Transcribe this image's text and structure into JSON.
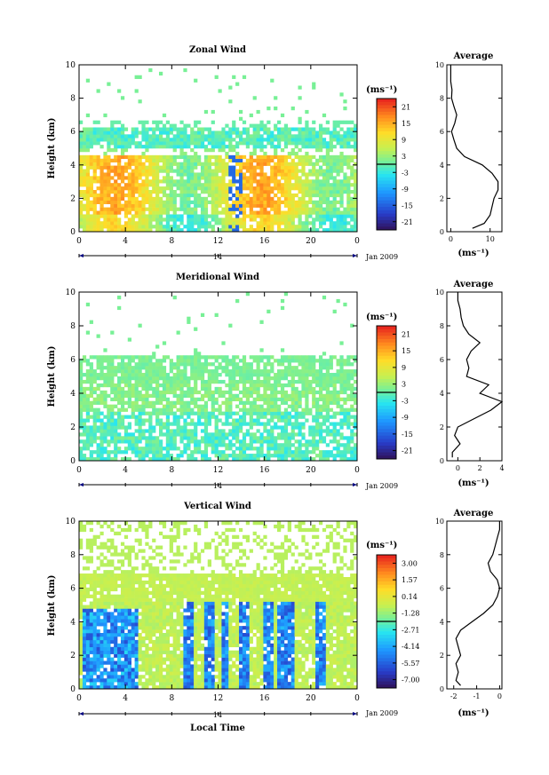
{
  "chart_data": [
    {
      "type": "heatmap",
      "title": "Zonal Wind",
      "xlabel": "",
      "ylabel": "Height (km)",
      "x_ticks": [
        "0",
        "4",
        "8",
        "12",
        "16",
        "20",
        "0"
      ],
      "y_ticks": [
        "0",
        "2",
        "4",
        "6",
        "8",
        "10"
      ],
      "xlim": [
        0,
        24
      ],
      "ylim": [
        0,
        10
      ],
      "date_center": "14",
      "date_label": "Jan 2009",
      "colorbar": {
        "unit": "(ms⁻¹)",
        "ticks": [
          "21",
          "15",
          "9",
          "3",
          "-3",
          "-9",
          "-15",
          "-21"
        ],
        "range": [
          -24,
          24
        ]
      },
      "profile": {
        "title": "Average",
        "xlabel": "(ms⁻¹)",
        "x_ticks": [
          "0",
          "10"
        ],
        "xlim": [
          -1,
          13
        ],
        "y_ticks": [
          "0",
          "2",
          "4",
          "6",
          "8",
          "10"
        ],
        "height": [
          0.2,
          0.5,
          1.0,
          1.5,
          2.0,
          2.5,
          3.0,
          3.5,
          4.0,
          4.5,
          5.0,
          5.5,
          6.0,
          6.5,
          7.0,
          7.5,
          8.0,
          8.5,
          9.0,
          9.5,
          10.0
        ],
        "value": [
          5.5,
          8.5,
          10.0,
          10.5,
          11.0,
          12.0,
          12.0,
          10.5,
          8.0,
          3.5,
          1.5,
          0.8,
          0.2,
          1.0,
          1.5,
          0.8,
          0.2,
          0.3,
          0.0,
          0.0,
          0.0
        ]
      }
    },
    {
      "type": "heatmap",
      "title": "Meridional Wind",
      "xlabel": "",
      "ylabel": "Height (km)",
      "x_ticks": [
        "0",
        "4",
        "8",
        "12",
        "16",
        "20",
        "0"
      ],
      "y_ticks": [
        "0",
        "2",
        "4",
        "6",
        "8",
        "10"
      ],
      "xlim": [
        0,
        24
      ],
      "ylim": [
        0,
        10
      ],
      "date_center": "14",
      "date_label": "Jan 2009",
      "colorbar": {
        "unit": "(ms⁻¹)",
        "ticks": [
          "21",
          "15",
          "9",
          "3",
          "-3",
          "-9",
          "-15",
          "-21"
        ],
        "range": [
          -24,
          24
        ]
      },
      "profile": {
        "title": "Average",
        "xlabel": "(ms⁻¹)",
        "x_ticks": [
          "0",
          "2",
          "4"
        ],
        "xlim": [
          -1,
          4
        ],
        "y_ticks": [
          "0",
          "2",
          "4",
          "6",
          "8",
          "10"
        ],
        "height": [
          0.2,
          0.5,
          1.0,
          1.5,
          2.0,
          2.5,
          3.0,
          3.5,
          4.0,
          4.5,
          5.0,
          5.5,
          6.0,
          6.5,
          7.0,
          7.5,
          8.0,
          8.5,
          9.0,
          9.5,
          10.0
        ],
        "value": [
          -0.5,
          -0.5,
          0.2,
          -0.3,
          0.0,
          1.5,
          3.0,
          4.0,
          2.0,
          2.8,
          0.8,
          1.0,
          0.8,
          1.2,
          2.0,
          1.0,
          0.5,
          0.3,
          0.2,
          0.0,
          0.0
        ]
      }
    },
    {
      "type": "heatmap",
      "title": "Vertical Wind",
      "xlabel": "Local Time",
      "ylabel": "Height (km)",
      "x_ticks": [
        "0",
        "4",
        "8",
        "12",
        "16",
        "20",
        "0"
      ],
      "y_ticks": [
        "0",
        "2",
        "4",
        "6",
        "8",
        "10"
      ],
      "xlim": [
        0,
        24
      ],
      "ylim": [
        0,
        10
      ],
      "date_center": "14",
      "date_label": "Jan 2009",
      "colorbar": {
        "unit": "(ms⁻¹)",
        "ticks": [
          "3.00",
          "1.57",
          "0.14",
          "-1.28",
          "-2.71",
          "-4.14",
          "-5.57",
          "-7.00"
        ],
        "range": [
          -7.7,
          3.7
        ]
      },
      "profile": {
        "title": "Average",
        "xlabel": "(ms⁻¹)",
        "x_ticks": [
          "-2",
          "-1",
          "0"
        ],
        "xlim": [
          -2.3,
          0.1
        ],
        "y_ticks": [
          "0",
          "2",
          "4",
          "6",
          "8",
          "10"
        ],
        "height": [
          0.2,
          0.5,
          1.0,
          1.5,
          2.0,
          2.5,
          3.0,
          3.5,
          4.0,
          4.5,
          5.0,
          5.5,
          6.0,
          6.5,
          7.0,
          7.5,
          8.0,
          8.5,
          9.0,
          9.5,
          10.0
        ],
        "value": [
          -1.7,
          -1.9,
          -1.8,
          -1.9,
          -1.7,
          -1.8,
          -1.9,
          -1.7,
          -1.2,
          -0.7,
          -0.3,
          -0.1,
          0.0,
          -0.1,
          -0.4,
          -0.5,
          -0.3,
          -0.2,
          -0.1,
          0.0,
          0.0
        ]
      }
    }
  ]
}
